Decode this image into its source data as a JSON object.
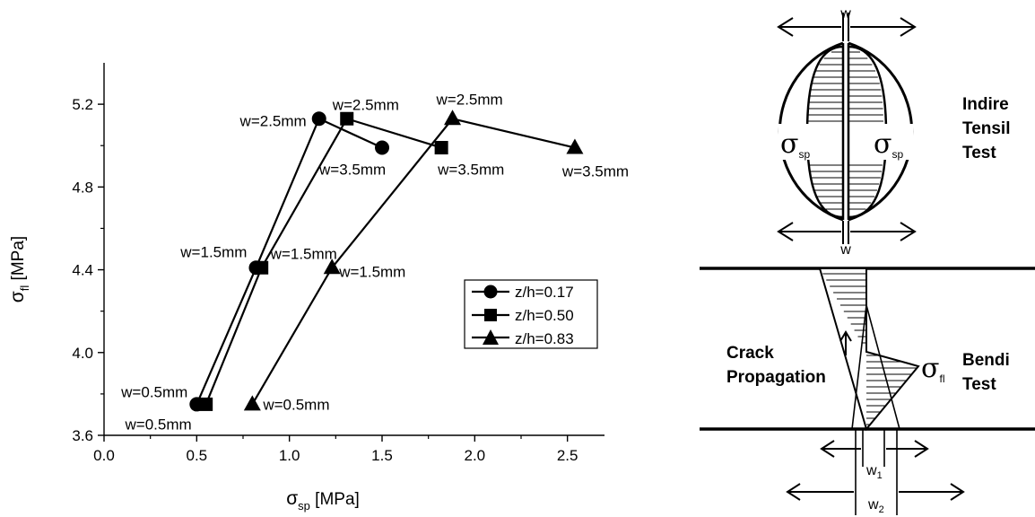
{
  "chart_data": {
    "type": "line",
    "x_axis": {
      "label_symbol": "σ",
      "label_sub": "sp",
      "label_unit": " [MPa]",
      "range": [
        0.0,
        2.7
      ],
      "ticks": [
        "0.0",
        "0.5",
        "1.0",
        "1.5",
        "2.0",
        "2.5"
      ]
    },
    "y_axis": {
      "label_symbol": "σ",
      "label_sub": "fl",
      "label_unit": " [MPa]",
      "range": [
        3.6,
        5.4
      ],
      "ticks": [
        "3.6",
        "4.0",
        "4.4",
        "4.8",
        "5.2"
      ]
    },
    "grid": false,
    "legend_position": "right-middle",
    "series": [
      {
        "name": "z/h=0.17",
        "marker": "circle",
        "points": [
          {
            "x": 0.5,
            "y": 3.75,
            "label": "w=0.5mm"
          },
          {
            "x": 0.82,
            "y": 4.41,
            "label": "w=1.5mm"
          },
          {
            "x": 1.16,
            "y": 5.13,
            "label": "w=2.5mm"
          },
          {
            "x": 1.5,
            "y": 4.99,
            "label": "w=3.5mm"
          }
        ]
      },
      {
        "name": "z/h=0.50",
        "marker": "square",
        "points": [
          {
            "x": 0.55,
            "y": 3.75,
            "label": "w=0.5mm"
          },
          {
            "x": 0.85,
            "y": 4.41,
            "label": "w=1.5mm"
          },
          {
            "x": 1.31,
            "y": 5.13,
            "label": "w=2.5mm"
          },
          {
            "x": 1.82,
            "y": 4.99,
            "label": "w=3.5mm"
          }
        ]
      },
      {
        "name": "z/h=0.83",
        "marker": "triangle",
        "points": [
          {
            "x": 0.8,
            "y": 3.75,
            "label": "w=0.5mm"
          },
          {
            "x": 1.23,
            "y": 4.41,
            "label": "w=1.5mm"
          },
          {
            "x": 1.88,
            "y": 5.13,
            "label": "w=2.5mm"
          },
          {
            "x": 2.54,
            "y": 4.99,
            "label": "w=3.5mm"
          }
        ]
      }
    ]
  },
  "diagram": {
    "top_width_label": "w",
    "bottom_width_label": "w",
    "sigma_sp_symbol": "σ",
    "sigma_sp_sub": "sp",
    "sigma_fl_symbol": "σ",
    "sigma_fl_sub": "fl",
    "indirect_test_lines": [
      "Indire",
      "Tensil",
      "Test"
    ],
    "bending_test_lines": [
      "Bendi",
      "Test"
    ],
    "crack_lines": [
      "Crack",
      "Propagation"
    ],
    "w1_label": "w",
    "w1_sub": "1",
    "w2_label": "w",
    "w2_sub": "2"
  }
}
